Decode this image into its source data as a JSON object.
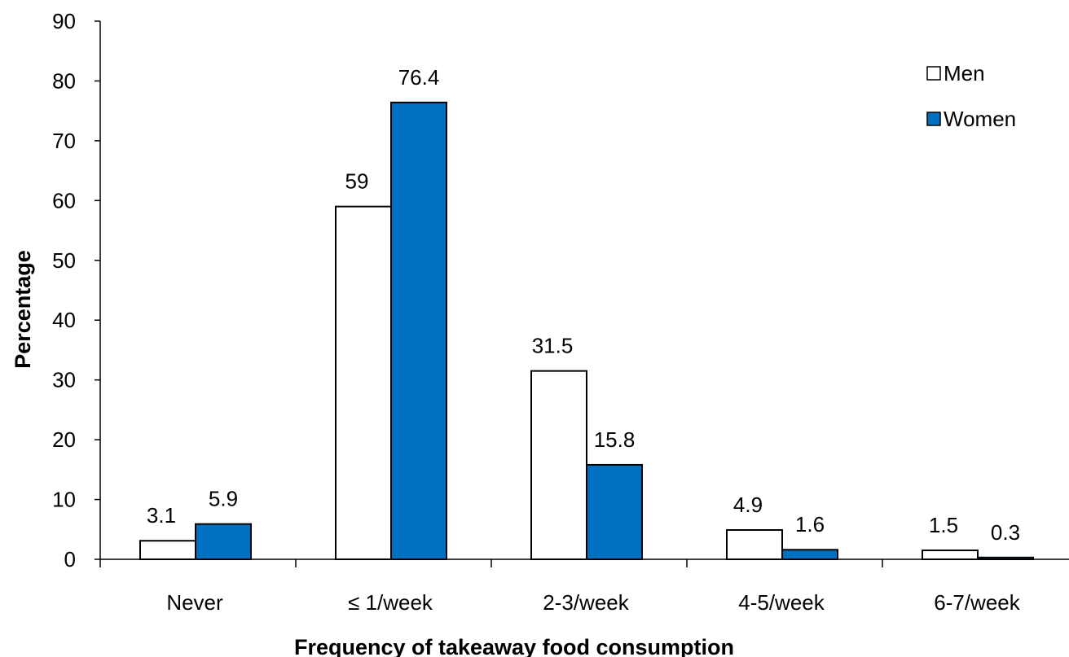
{
  "chart_data": {
    "type": "bar",
    "categories": [
      "Never",
      "≤ 1/week",
      "2-3/week",
      "4-5/week",
      "6-7/week"
    ],
    "series": [
      {
        "name": "Men",
        "values": [
          3.1,
          59,
          31.5,
          4.9,
          1.5
        ],
        "color": "#ffffff"
      },
      {
        "name": "Women",
        "values": [
          5.9,
          76.4,
          15.8,
          1.6,
          0.3
        ],
        "color": "#0070c0"
      }
    ],
    "data_labels": [
      [
        "3.1",
        "59",
        "31.5",
        "4.9",
        "1.5"
      ],
      [
        "5.9",
        "76.4",
        "15.8",
        "1.6",
        "0.3"
      ]
    ],
    "title": "",
    "xlabel": "Frequency of takeaway food consumption",
    "ylabel": "Percentage",
    "ylim": [
      0,
      90
    ],
    "yticks": [
      "0",
      "10",
      "20",
      "30",
      "40",
      "50",
      "60",
      "70",
      "80",
      "90"
    ],
    "grid": false,
    "legend_position": "top-right"
  }
}
